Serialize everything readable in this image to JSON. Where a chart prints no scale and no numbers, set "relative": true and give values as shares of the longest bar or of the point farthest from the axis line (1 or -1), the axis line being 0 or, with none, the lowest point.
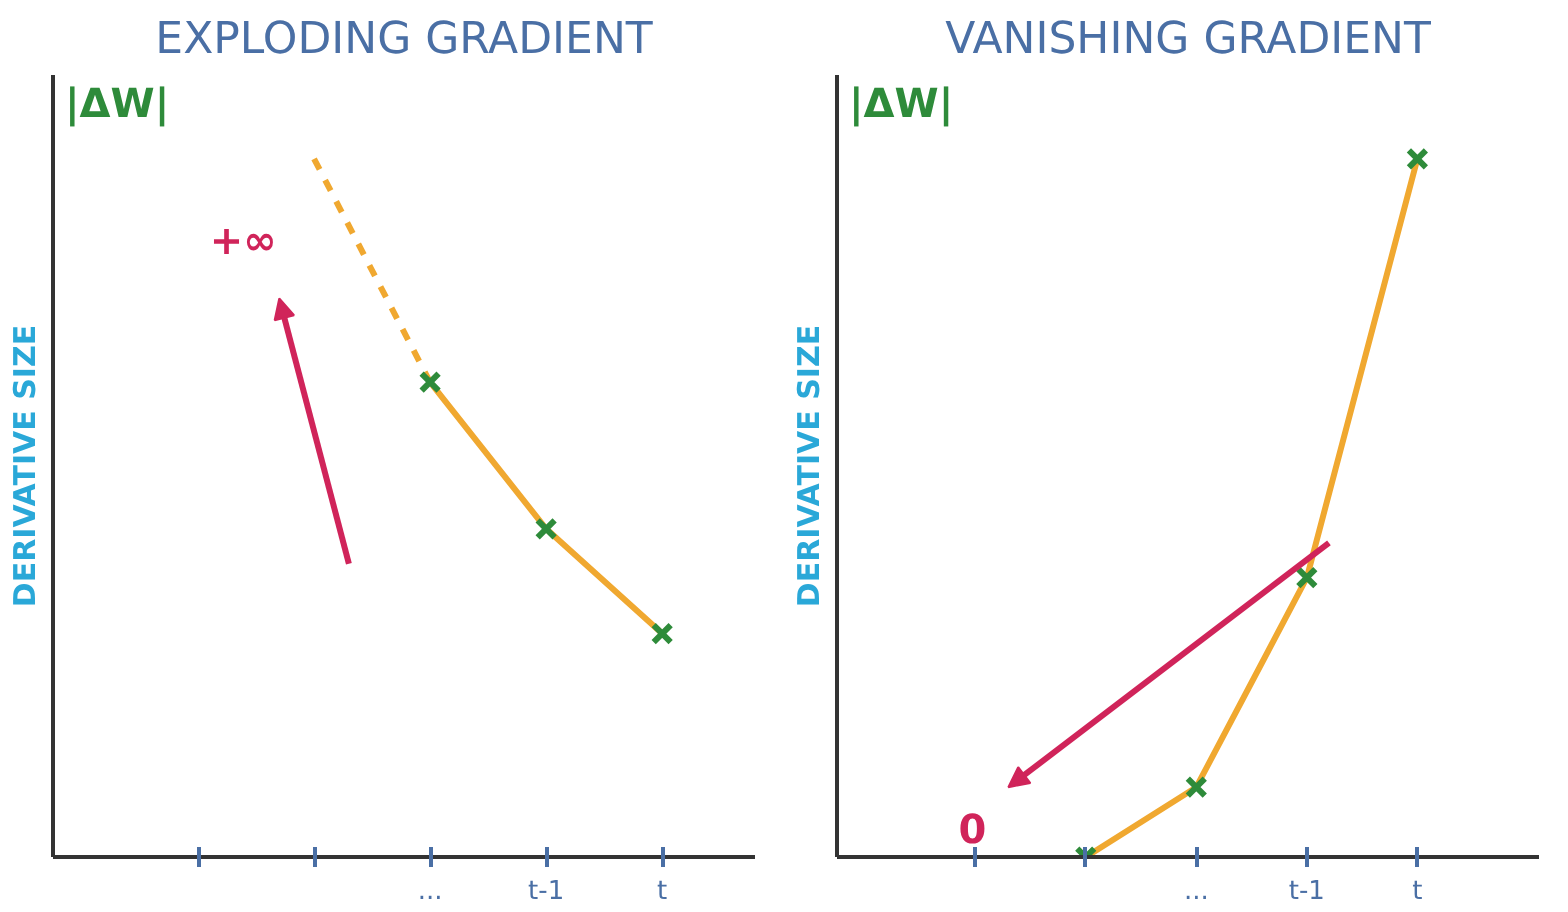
{
  "chart_data": [
    {
      "type": "line",
      "title": "EXPLODING GRADIENT",
      "ylabel": "DERIVATIVE SIZE",
      "relative": true,
      "categories": [
        null,
        null,
        "...",
        "t-1",
        "t"
      ],
      "annotations": [
        "|ΔW|",
        "+∞"
      ],
      "grid": false,
      "series": [
        {
          "color": "#f0a830",
          "values": [
            null,
            1,
            0.68,
            null,
            null
          ],
          "line_style": "dashed"
        },
        {
          "color": "#f0a830",
          "values": [
            null,
            null,
            0.68,
            0.47,
            0.32
          ],
          "line_style": "solid"
        },
        {
          "type": "scatter",
          "color": "#2e8b3a",
          "values": [
            null,
            null,
            0.68,
            0.47,
            0.32
          ],
          "marker": "cross"
        }
      ]
    },
    {
      "type": "line",
      "title": "VANISHING GRADIENT",
      "ylabel": "DERIVATIVE SIZE",
      "relative": true,
      "categories": [
        null,
        null,
        "...",
        "t-1",
        "t"
      ],
      "annotations": [
        "|ΔW|",
        "0"
      ],
      "grid": false,
      "series": [
        {
          "color": "#f0a830",
          "values": [
            null,
            0,
            0.1,
            0.4,
            1
          ],
          "line_style": "solid"
        },
        {
          "type": "scatter",
          "color": "#2e8b3a",
          "values": [
            null,
            0,
            0.1,
            0.4,
            1
          ],
          "marker": "cross"
        }
      ]
    }
  ]
}
